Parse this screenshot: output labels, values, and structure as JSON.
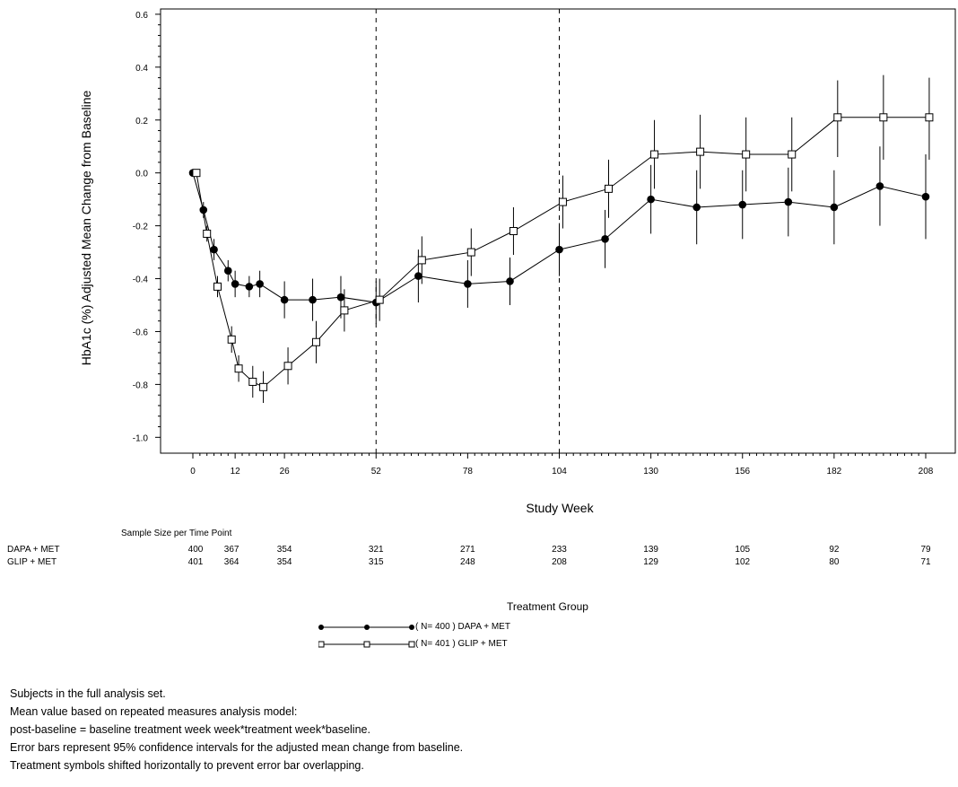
{
  "chart_data": {
    "type": "line",
    "title": "",
    "ylabel": "HbA1c (%) Adjusted Mean Change from Baseline",
    "xlabel": "Study Week",
    "ylim": [
      -1.06,
      0.62
    ],
    "xlim": [
      -8,
      212
    ],
    "xticks": [
      0,
      12,
      26,
      52,
      78,
      104,
      130,
      156,
      182,
      208
    ],
    "yticks": [
      -1.0,
      -0.8,
      -0.6,
      -0.4,
      -0.2,
      0.0,
      0.2,
      0.4,
      0.6
    ],
    "ytick_labels": [
      "-1.0",
      "-0.8",
      "-0.6",
      "-0.4",
      "-0.2",
      "0.0",
      "0.2",
      "0.4",
      "0.6"
    ],
    "vlines": [
      52,
      104
    ],
    "series": [
      {
        "name": "( N= 400 ) DAPA + MET",
        "marker": "filled-circle",
        "x": [
          0,
          3,
          6,
          10,
          12,
          16,
          19,
          26,
          34,
          42,
          52,
          64,
          78,
          90,
          104,
          117,
          130,
          143,
          156,
          169,
          182,
          195,
          208
        ],
        "y": [
          0.0,
          -0.14,
          -0.29,
          -0.37,
          -0.42,
          -0.43,
          -0.42,
          -0.48,
          -0.48,
          -0.47,
          -0.49,
          -0.39,
          -0.42,
          -0.41,
          -0.29,
          -0.25,
          -0.1,
          -0.13,
          -0.12,
          -0.11,
          -0.13,
          -0.05,
          -0.09
        ],
        "ci_low": [
          0.0,
          -0.17,
          -0.33,
          -0.41,
          -0.47,
          -0.47,
          -0.47,
          -0.55,
          -0.56,
          -0.55,
          -0.57,
          -0.49,
          -0.51,
          -0.5,
          -0.39,
          -0.36,
          -0.23,
          -0.27,
          -0.25,
          -0.24,
          -0.27,
          -0.2,
          -0.25
        ],
        "ci_high": [
          0.0,
          -0.11,
          -0.25,
          -0.33,
          -0.37,
          -0.39,
          -0.37,
          -0.41,
          -0.4,
          -0.39,
          -0.41,
          -0.29,
          -0.33,
          -0.32,
          -0.19,
          -0.14,
          0.03,
          0.01,
          0.01,
          0.02,
          0.01,
          0.1,
          0.07
        ]
      },
      {
        "name": "( N= 401 ) GLIP + MET",
        "marker": "open-square",
        "x": [
          1,
          4,
          7,
          11,
          13,
          17,
          20,
          27,
          35,
          43,
          53,
          65,
          79,
          91,
          105,
          118,
          131,
          144,
          157,
          170,
          183,
          196,
          209
        ],
        "y": [
          0.0,
          -0.23,
          -0.43,
          -0.63,
          -0.74,
          -0.79,
          -0.81,
          -0.73,
          -0.64,
          -0.52,
          -0.48,
          -0.33,
          -0.3,
          -0.22,
          -0.11,
          -0.06,
          0.07,
          0.08,
          0.07,
          0.07,
          0.21,
          0.21,
          0.21
        ],
        "ci_low": [
          0.0,
          -0.26,
          -0.47,
          -0.68,
          -0.79,
          -0.85,
          -0.87,
          -0.8,
          -0.72,
          -0.6,
          -0.56,
          -0.42,
          -0.39,
          -0.31,
          -0.21,
          -0.17,
          -0.06,
          -0.06,
          -0.07,
          -0.07,
          0.06,
          0.05,
          0.05
        ],
        "ci_high": [
          0.0,
          -0.2,
          -0.39,
          -0.58,
          -0.69,
          -0.73,
          -0.75,
          -0.66,
          -0.56,
          -0.44,
          -0.4,
          -0.24,
          -0.21,
          -0.13,
          -0.01,
          0.05,
          0.2,
          0.22,
          0.21,
          0.21,
          0.35,
          0.37,
          0.36
        ]
      }
    ]
  },
  "sample_size": {
    "title": "Sample Size per Time Point",
    "weeks": [
      0,
      12,
      26,
      52,
      78,
      104,
      130,
      156,
      182,
      208
    ],
    "rows": [
      {
        "label": "DAPA + MET",
        "values": [
          "400",
          "367",
          "354",
          "321",
          "271",
          "233",
          "139",
          "105",
          "92",
          "79"
        ]
      },
      {
        "label": "GLIP + MET",
        "values": [
          "401",
          "364",
          "354",
          "315",
          "248",
          "208",
          "129",
          "102",
          "80",
          "71"
        ]
      }
    ]
  },
  "legend": {
    "title": "Treatment Group",
    "items": [
      "( N= 400 ) DAPA + MET",
      "( N= 401 ) GLIP + MET"
    ]
  },
  "notes": [
    "Subjects in the full analysis set.",
    "Mean value based on repeated measures analysis model:",
    "post-baseline = baseline treatment week week*treatment week*baseline.",
    "Error bars represent 95% confidence intervals for the adjusted mean change from baseline.",
    "Treatment symbols shifted horizontally to prevent error bar overlapping."
  ]
}
